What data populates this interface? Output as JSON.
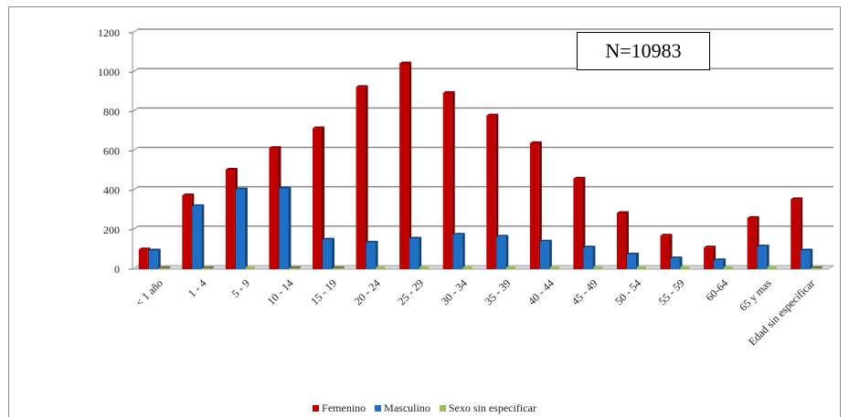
{
  "annotation": "N=10983",
  "colors": {
    "femenino": "#c00000",
    "masculino": "#1f6fc5",
    "sin_especificar": "#9bbb59"
  },
  "chart_data": {
    "type": "bar",
    "title": "",
    "xlabel": "",
    "ylabel": "",
    "ylim": [
      0,
      1200
    ],
    "yticks": [
      0,
      200,
      400,
      600,
      800,
      1000,
      1200
    ],
    "grid": true,
    "legend_position": "bottom",
    "categories": [
      "< 1 año",
      "1 - 4",
      "5 - 9",
      "10 - 14",
      "15 - 19",
      "20 - 24",
      "25 - 29",
      "30 - 34",
      "35 - 39",
      "40 - 44",
      "45 - 49",
      "50 - 54",
      "55 - 59",
      "60-64",
      "65 y mas",
      "Edad sin especificar"
    ],
    "series": [
      {
        "name": "Femenino",
        "values": [
          100,
          375,
          505,
          615,
          715,
          925,
          1045,
          895,
          780,
          640,
          460,
          285,
          170,
          110,
          260,
          355
        ]
      },
      {
        "name": "Masculino",
        "values": [
          95,
          320,
          405,
          410,
          150,
          135,
          155,
          175,
          165,
          140,
          110,
          75,
          55,
          45,
          115,
          95
        ]
      },
      {
        "name": "Sexo sin especificar",
        "values": [
          5,
          5,
          2,
          5,
          5,
          0,
          0,
          0,
          0,
          0,
          0,
          0,
          0,
          0,
          0,
          5
        ]
      }
    ]
  }
}
